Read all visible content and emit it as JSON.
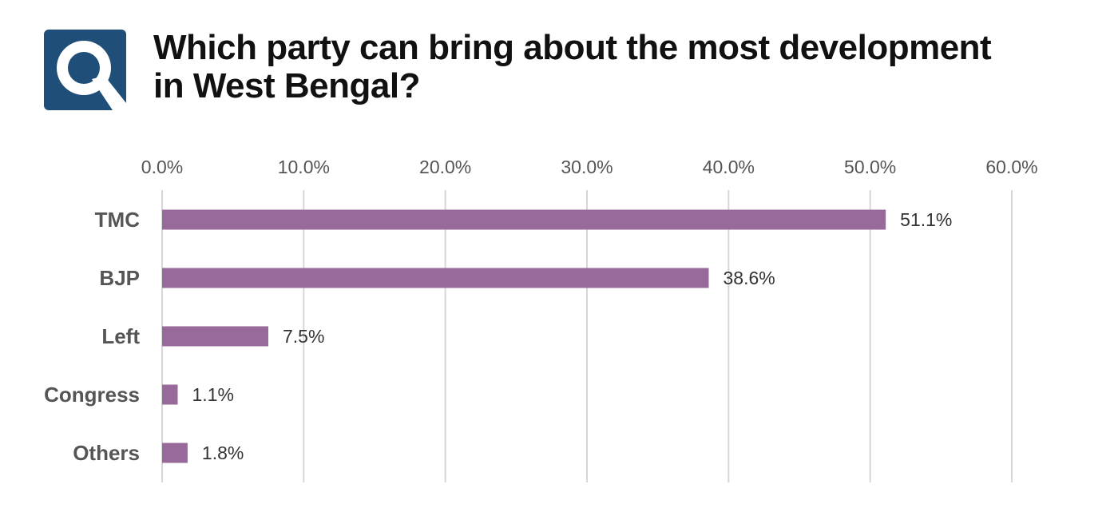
{
  "header": {
    "title_line1": "Which party can bring about the most development",
    "title_line2": "in West Bengal?",
    "logo_icon": "q-logo-icon"
  },
  "colors": {
    "bar": "#986a9a",
    "logo_bg": "#1f4e79",
    "gridline": "#d6d6d6"
  },
  "chart_data": {
    "type": "bar",
    "orientation": "horizontal",
    "title": "Which party can bring about the most development in West Bengal?",
    "categories": [
      "TMC",
      "BJP",
      "Left",
      "Congress",
      "Others"
    ],
    "values": [
      51.1,
      38.6,
      7.5,
      1.1,
      1.8
    ],
    "value_labels": [
      "51.1%",
      "38.6%",
      "7.5%",
      "1.1%",
      "1.8%"
    ],
    "xlim": [
      0,
      60
    ],
    "x_ticks": [
      0,
      10,
      20,
      30,
      40,
      50,
      60
    ],
    "x_tick_labels": [
      "0.0%",
      "10.0%",
      "20.0%",
      "30.0%",
      "40.0%",
      "50.0%",
      "60.0%"
    ],
    "axis_position": "top",
    "grid": true,
    "xlabel": "",
    "ylabel": ""
  }
}
